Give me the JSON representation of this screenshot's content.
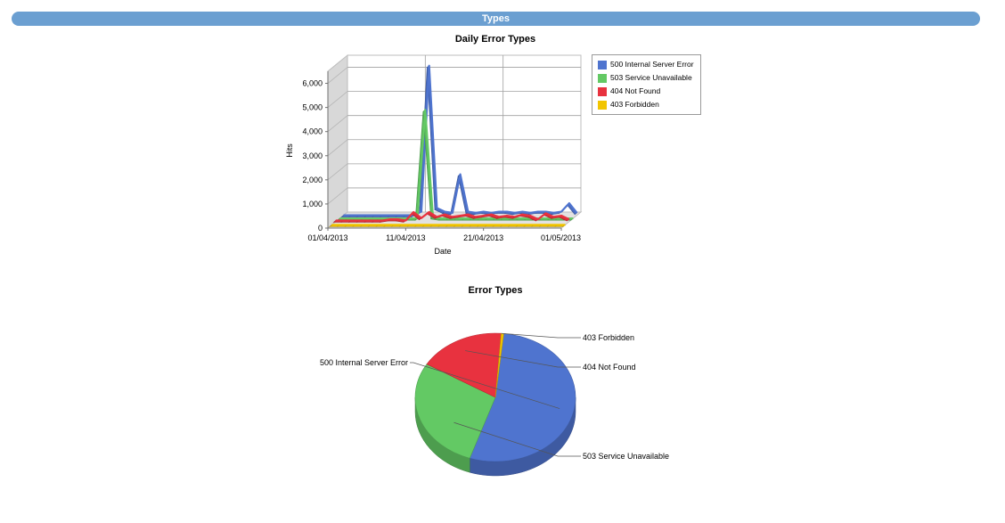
{
  "section": {
    "title": "Types"
  },
  "chart_data": [
    {
      "type": "line",
      "title": "Daily Error Types",
      "xlabel": "Date",
      "ylabel": "Hits",
      "ylim": [
        0,
        6500
      ],
      "yticks": [
        "0",
        "1,000",
        "2,000",
        "3,000",
        "4,000",
        "5,000",
        "6,000"
      ],
      "xticks": [
        "01/04/2013",
        "11/04/2013",
        "21/04/2013",
        "01/05/2013"
      ],
      "x": [
        "01/04/2013",
        "02/04/2013",
        "03/04/2013",
        "04/04/2013",
        "05/04/2013",
        "06/04/2013",
        "07/04/2013",
        "08/04/2013",
        "09/04/2013",
        "10/04/2013",
        "11/04/2013",
        "12/04/2013",
        "13/04/2013",
        "14/04/2013",
        "15/04/2013",
        "16/04/2013",
        "17/04/2013",
        "18/04/2013",
        "19/04/2013",
        "20/04/2013",
        "21/04/2013",
        "22/04/2013",
        "23/04/2013",
        "24/04/2013",
        "25/04/2013",
        "26/04/2013",
        "27/04/2013",
        "28/04/2013",
        "29/04/2013",
        "30/04/2013",
        "01/05/2013"
      ],
      "series": [
        {
          "name": "500 Internal Server Error",
          "color": "#4f74cf",
          "values": [
            0,
            0,
            0,
            0,
            0,
            0,
            0,
            0,
            0,
            0,
            150,
            6200,
            300,
            150,
            100,
            1700,
            150,
            100,
            150,
            100,
            150,
            150,
            100,
            150,
            100,
            150,
            150,
            100,
            150,
            500,
            100
          ]
        },
        {
          "name": "503 Service Unavailable",
          "color": "#63c964",
          "values": [
            0,
            0,
            0,
            0,
            0,
            0,
            0,
            0,
            0,
            0,
            0,
            4500,
            50,
            0,
            0,
            0,
            0,
            0,
            0,
            0,
            0,
            0,
            0,
            0,
            0,
            0,
            0,
            0,
            0,
            0,
            0
          ]
        },
        {
          "name": "404 Not Found",
          "color": "#e8323f",
          "values": [
            50,
            50,
            50,
            50,
            50,
            50,
            50,
            100,
            100,
            50,
            400,
            150,
            400,
            200,
            300,
            200,
            250,
            300,
            200,
            250,
            300,
            200,
            250,
            200,
            300,
            250,
            100,
            350,
            200,
            250,
            100
          ]
        },
        {
          "name": "403 Forbidden",
          "color": "#f2c500",
          "values": [
            0,
            0,
            0,
            0,
            0,
            0,
            0,
            0,
            0,
            0,
            0,
            0,
            0,
            0,
            0,
            0,
            0,
            0,
            0,
            0,
            0,
            0,
            0,
            0,
            0,
            0,
            0,
            0,
            0,
            0,
            0
          ]
        }
      ],
      "legend_position": "right"
    },
    {
      "type": "pie",
      "title": "Error Types",
      "labels": [
        "500 Internal Server Error",
        "503 Service Unavailable",
        "404 Not Found",
        "403 Forbidden"
      ],
      "values": [
        53.5,
        28.5,
        17.5,
        0.5
      ],
      "colors": [
        "#4f74cf",
        "#63c964",
        "#e8323f",
        "#f2c500"
      ]
    }
  ]
}
